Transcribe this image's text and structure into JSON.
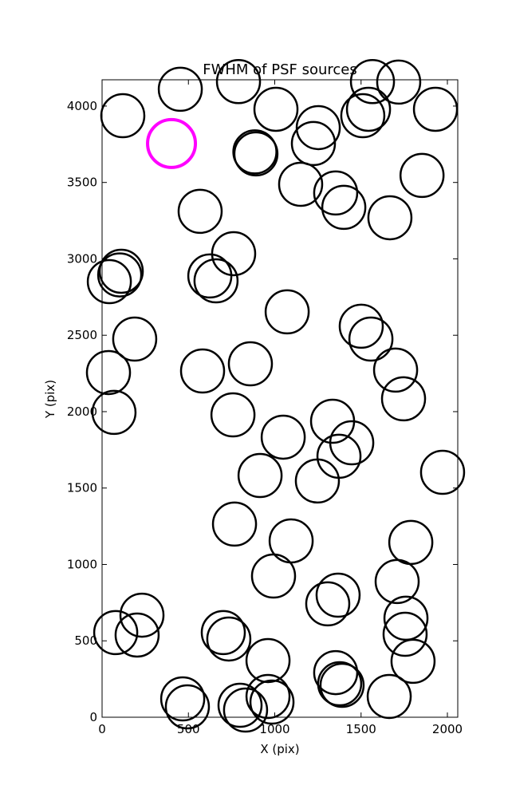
{
  "chart_data": {
    "type": "scatter",
    "title": "FWHM of PSF sources",
    "x_label": "X (pix)",
    "y_label": "Y (pix)",
    "xlim": [
      0,
      2060
    ],
    "ylim": [
      0,
      4172
    ],
    "xticks": [
      0,
      500,
      1000,
      1500,
      2000
    ],
    "yticks": [
      0,
      500,
      1000,
      1500,
      2000,
      2500,
      3000,
      3500,
      4000
    ],
    "series": [
      {
        "color": "#000000",
        "x": [
          120,
          453,
          790,
          1007,
          891,
          885,
          1252,
          1224,
          1566,
          1718,
          1510,
          1543,
          1931,
          1853,
          1150,
          1353,
          1400,
          1667,
          568,
          762,
          111,
          102,
          42,
          624,
          660,
          1072,
          1501,
          1557,
          189,
          37,
          582,
          859,
          1700,
          1746,
          69,
          758,
          1049,
          1335,
          1446,
          1372,
          915,
          1247,
          1972,
          767,
          1095,
          1788,
          993,
          1367,
          1307,
          1709,
          1760,
          1755,
          231,
          79,
          203,
          702,
          734,
          961,
          1801,
          1353,
          1376,
          1390,
          467,
          494,
          799,
          831,
          961,
          984,
          1663
        ],
        "y": [
          3937,
          4110,
          4160,
          3979,
          3687,
          3700,
          3859,
          3755,
          4160,
          4157,
          3937,
          3979,
          3979,
          3546,
          3488,
          3431,
          3337,
          3269,
          3311,
          3034,
          2919,
          2895,
          2851,
          2888,
          2856,
          2653,
          2559,
          2475,
          2475,
          2256,
          2266,
          2313,
          2272,
          2084,
          1995,
          1979,
          1833,
          1937,
          1796,
          1708,
          1582,
          1546,
          1603,
          1264,
          1154,
          1144,
          924,
          799,
          742,
          888,
          648,
          543,
          668,
          554,
          538,
          554,
          512,
          371,
          366,
          292,
          219,
          209,
          120,
          68,
          78,
          47,
          136,
          99,
          136
        ]
      },
      {
        "color": "#ff00ff",
        "x": [
          402
        ],
        "y": [
          3755
        ]
      }
    ]
  }
}
